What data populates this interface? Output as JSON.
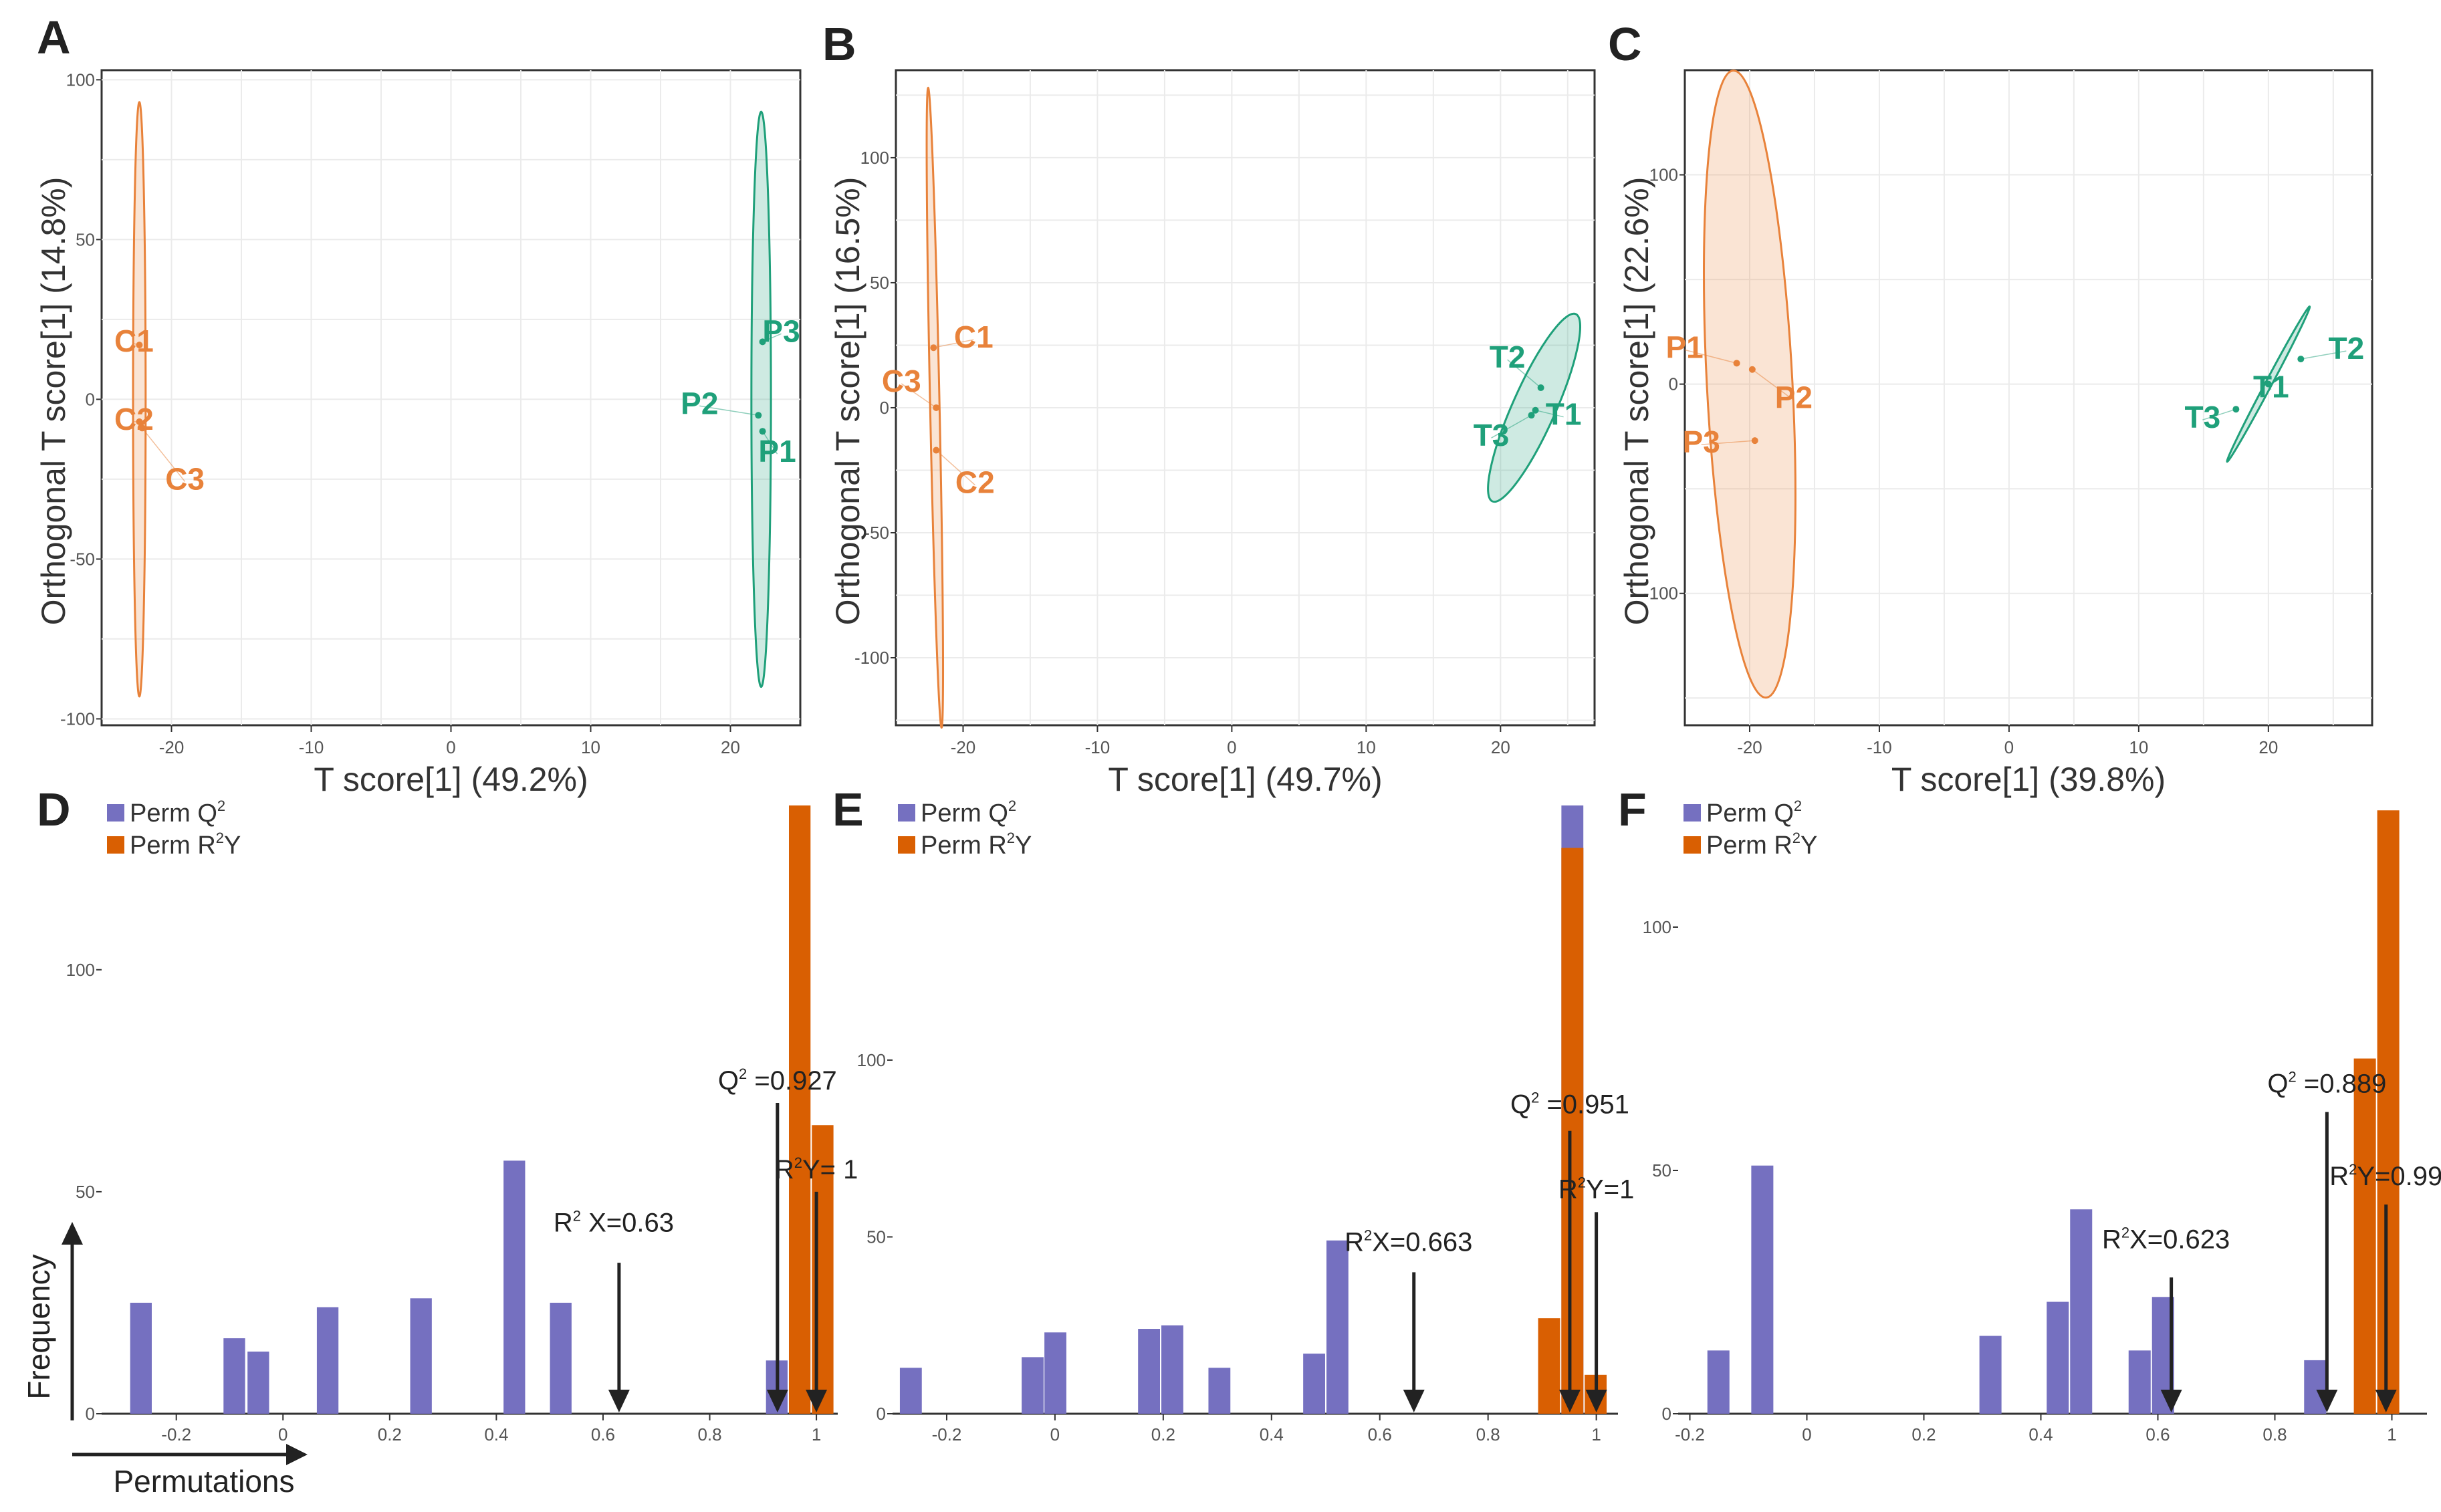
{
  "figure": {
    "colors": {
      "orange": "#E8823A",
      "green": "#1FA07A",
      "purple": "#7570C0",
      "bar_orange": "#D95F02",
      "grid": "#EBEBEB",
      "axis": "#333333"
    }
  },
  "chart_data": [
    {
      "panel": "A",
      "type": "scatter",
      "xlabel": "T score[1] (49.2%)",
      "ylabel": "Orthogonal T score[1] (14.8%)",
      "xlim": [
        -25,
        25
      ],
      "ylim": [
        -102,
        103
      ],
      "xticks": [
        -20,
        -10,
        0,
        10,
        20
      ],
      "yticks": [
        -100,
        -50,
        0,
        50,
        100
      ],
      "xticklabels": [
        "-20",
        "-10",
        "0",
        "10",
        "20"
      ],
      "yticklabels": [
        "-100",
        "-50",
        "0",
        "50",
        "100"
      ],
      "groups": [
        {
          "name": "C",
          "color": "orange",
          "points": [
            {
              "label": "C1",
              "x": -22.3,
              "y": 17
            },
            {
              "label": "C2",
              "x": -22.3,
              "y": -7
            },
            {
              "label": "C3",
              "x": -22.1,
              "y": -9
            }
          ],
          "ellipse": {
            "cx": -22.3,
            "cy": 0,
            "rx": 0.45,
            "ry": 93,
            "angle": 0
          }
        },
        {
          "name": "P",
          "color": "green",
          "points": [
            {
              "label": "P3",
              "x": 22.3,
              "y": 18
            },
            {
              "label": "P2",
              "x": 22.0,
              "y": -5
            },
            {
              "label": "P1",
              "x": 22.3,
              "y": -10
            }
          ],
          "ellipse": {
            "cx": 22.2,
            "cy": 0,
            "rx": 0.7,
            "ry": 90,
            "angle": 0
          }
        }
      ]
    },
    {
      "panel": "B",
      "type": "scatter",
      "xlabel": "T score[1] (49.7%)",
      "ylabel": "Orthogonal T score[1] (16.5%)",
      "xlim": [
        -25,
        27
      ],
      "ylim": [
        -127,
        135
      ],
      "xticks": [
        -20,
        -10,
        0,
        10,
        20
      ],
      "yticks": [
        -100,
        -50,
        0,
        50,
        100
      ],
      "xticklabels": [
        "-20",
        "-10",
        "0",
        "10",
        "20"
      ],
      "yticklabels": [
        "-100",
        "-50",
        "0",
        "50",
        "100"
      ],
      "groups": [
        {
          "name": "C",
          "color": "orange",
          "points": [
            {
              "label": "C1",
              "x": -22.2,
              "y": 24
            },
            {
              "label": "C3",
              "x": -22.0,
              "y": 0
            },
            {
              "label": "C2",
              "x": -22.0,
              "y": -17
            }
          ],
          "ellipse": {
            "cx": -22.1,
            "cy": 0,
            "rx": 0.35,
            "ry": 128,
            "angle": -1.2
          }
        },
        {
          "name": "T",
          "color": "green",
          "points": [
            {
              "label": "T2",
              "x": 23.0,
              "y": 8
            },
            {
              "label": "T1",
              "x": 22.6,
              "y": -1
            },
            {
              "label": "T3",
              "x": 22.3,
              "y": -3
            }
          ],
          "ellipse": {
            "cx": 22.5,
            "cy": 0,
            "rx": 1.6,
            "ry": 41,
            "angle": 24
          }
        }
      ]
    },
    {
      "panel": "C",
      "type": "scatter",
      "xlabel": "T score[1] (39.8%)",
      "ylabel": "Orthogonal T score[1] (22.6%)",
      "xlim": [
        -25,
        28
      ],
      "ylim": [
        -163,
        150
      ],
      "xticks": [
        -20,
        -10,
        0,
        10,
        20
      ],
      "yticks": [
        -100,
        0,
        100
      ],
      "xticklabels": [
        "-20",
        "-10",
        "0",
        "10",
        "20"
      ],
      "yticklabels": [
        "-100",
        "0",
        "100"
      ],
      "groups": [
        {
          "name": "P",
          "color": "orange",
          "points": [
            {
              "label": "P1",
              "x": -21.0,
              "y": 10
            },
            {
              "label": "P2",
              "x": -19.8,
              "y": 7
            },
            {
              "label": "P3",
              "x": -19.6,
              "y": -27
            }
          ],
          "ellipse": {
            "cx": -20.0,
            "cy": 0,
            "rx": 3.3,
            "ry": 150,
            "angle": -3
          }
        },
        {
          "name": "T",
          "color": "green",
          "points": [
            {
              "label": "T2",
              "x": 22.5,
              "y": 12
            },
            {
              "label": "T1",
              "x": 20.0,
              "y": 0
            },
            {
              "label": "T3",
              "x": 17.5,
              "y": -12
            }
          ],
          "ellipse": {
            "cx": 20.0,
            "cy": 0,
            "rx": 0.25,
            "ry": 42,
            "angle": 28
          }
        }
      ]
    },
    {
      "panel": "D",
      "type": "bar",
      "title": "",
      "xlabel": "Permutations",
      "ylabel": "Frequency",
      "xlim": [
        -0.34,
        1.04
      ],
      "ylim": [
        0,
        137
      ],
      "xticks": [
        -0.2,
        0,
        0.2,
        0.4,
        0.6,
        0.8,
        1
      ],
      "yticks": [
        0,
        50,
        100
      ],
      "xticklabels": [
        "-0.2",
        "0",
        "0.2",
        "0.4",
        "0.6",
        "0.8",
        "1"
      ],
      "yticklabels": [
        "0",
        "50",
        "100"
      ],
      "legend": [
        "Perm Q2",
        "Perm R2Y"
      ],
      "binwidth": 0.043,
      "series": [
        {
          "name": "Perm Q2",
          "color": "purple",
          "bins": [
            {
              "x": -0.265,
              "v": 25
            },
            {
              "x": -0.09,
              "v": 17
            },
            {
              "x": -0.045,
              "v": 14
            },
            {
              "x": 0.085,
              "v": 24
            },
            {
              "x": 0.26,
              "v": 26
            },
            {
              "x": 0.435,
              "v": 57
            },
            {
              "x": 0.522,
              "v": 25
            },
            {
              "x": 0.927,
              "v": 12
            }
          ]
        },
        {
          "name": "Perm R2Y",
          "color": "bar_orange",
          "bins": [
            {
              "x": 0.97,
              "v": 137
            },
            {
              "x": 1.013,
              "v": 65
            }
          ]
        }
      ],
      "annotations": [
        {
          "pre": "R",
          "sup": "2",
          "post": " X=0.63",
          "x": 0.63,
          "bar_top": 34,
          "text_y": 41
        },
        {
          "pre": "Q",
          "sup": "2",
          "post": " =0.927",
          "x": 0.927,
          "bar_top": 70,
          "text_y": 73
        },
        {
          "pre": "R",
          "sup": "2",
          "post": "Y= 1",
          "x": 1.0,
          "bar_top": 50,
          "text_y": 53
        }
      ]
    },
    {
      "panel": "E",
      "type": "bar",
      "title": "",
      "xlabel": "",
      "ylabel": "",
      "xlim": [
        -0.3,
        1.04
      ],
      "ylim": [
        0,
        172
      ],
      "xticks": [
        -0.2,
        0,
        0.2,
        0.4,
        0.6,
        0.8,
        1
      ],
      "yticks": [
        0,
        50,
        100
      ],
      "xticklabels": [
        "-0.2",
        "0",
        "0.2",
        "0.4",
        "0.6",
        "0.8",
        "1"
      ],
      "yticklabels": [
        "0",
        "50",
        "100"
      ],
      "legend": [
        "Perm Q2",
        "Perm R2Y"
      ],
      "binwidth": 0.043,
      "series": [
        {
          "name": "Perm Q2",
          "color": "purple",
          "bins": [
            {
              "x": -0.265,
              "v": 13
            },
            {
              "x": -0.04,
              "v": 16
            },
            {
              "x": 0.002,
              "v": 23
            },
            {
              "x": 0.175,
              "v": 24
            },
            {
              "x": 0.218,
              "v": 25
            },
            {
              "x": 0.305,
              "v": 13
            },
            {
              "x": 0.48,
              "v": 17
            },
            {
              "x": 0.523,
              "v": 49
            },
            {
              "x": 0.957,
              "v": 172
            }
          ]
        },
        {
          "name": "Perm R2Y",
          "color": "bar_orange",
          "bins": [
            {
              "x": 0.914,
              "v": 27
            },
            {
              "x": 0.957,
              "v": 160
            },
            {
              "x": 1.0,
              "v": 11
            }
          ]
        }
      ],
      "annotations": [
        {
          "pre": "R",
          "sup": "2",
          "post": "X=0.663",
          "x": 0.663,
          "bar_top": 40,
          "text_y": 46
        },
        {
          "pre": "Q",
          "sup": "2",
          "post": " =0.951",
          "x": 0.951,
          "bar_top": 80,
          "text_y": 85
        },
        {
          "pre": "R",
          "sup": "2",
          "post": "Y=1",
          "x": 1.0,
          "bar_top": 57,
          "text_y": 61
        }
      ]
    },
    {
      "panel": "F",
      "type": "bar",
      "title": "",
      "xlabel": "",
      "ylabel": "",
      "xlim": [
        -0.22,
        1.06
      ],
      "ylim": [
        0,
        125
      ],
      "xticks": [
        -0.2,
        0,
        0.2,
        0.4,
        0.6,
        0.8,
        1
      ],
      "yticks": [
        0,
        50,
        100
      ],
      "xticklabels": [
        "-0.2",
        "0",
        "0.2",
        "0.4",
        "0.6",
        "0.8",
        "1"
      ],
      "yticklabels": [
        "0",
        "50",
        "100"
      ],
      "legend": [
        "Perm Q2",
        "Perm R2Y"
      ],
      "binwidth": 0.04,
      "series": [
        {
          "name": "Perm Q2",
          "color": "purple",
          "bins": [
            {
              "x": -0.15,
              "v": 13
            },
            {
              "x": -0.075,
              "v": 51
            },
            {
              "x": 0.315,
              "v": 16
            },
            {
              "x": 0.43,
              "v": 23
            },
            {
              "x": 0.47,
              "v": 42
            },
            {
              "x": 0.57,
              "v": 13
            },
            {
              "x": 0.61,
              "v": 24
            },
            {
              "x": 0.87,
              "v": 11
            }
          ]
        },
        {
          "name": "Perm R2Y",
          "color": "bar_orange",
          "bins": [
            {
              "x": 0.955,
              "v": 73
            },
            {
              "x": 0.995,
              "v": 124
            }
          ]
        }
      ],
      "annotations": [
        {
          "pre": "R",
          "sup": "2",
          "post": "X=0.623",
          "x": 0.623,
          "bar_top": 28,
          "text_y": 34
        },
        {
          "pre": "Q",
          "sup": "2",
          "post": " =0.889",
          "x": 0.889,
          "bar_top": 62,
          "text_y": 66
        },
        {
          "pre": "R",
          "sup": "2",
          "post": "Y=0.99",
          "x": 0.99,
          "bar_top": 43,
          "text_y": 47
        }
      ]
    }
  ]
}
